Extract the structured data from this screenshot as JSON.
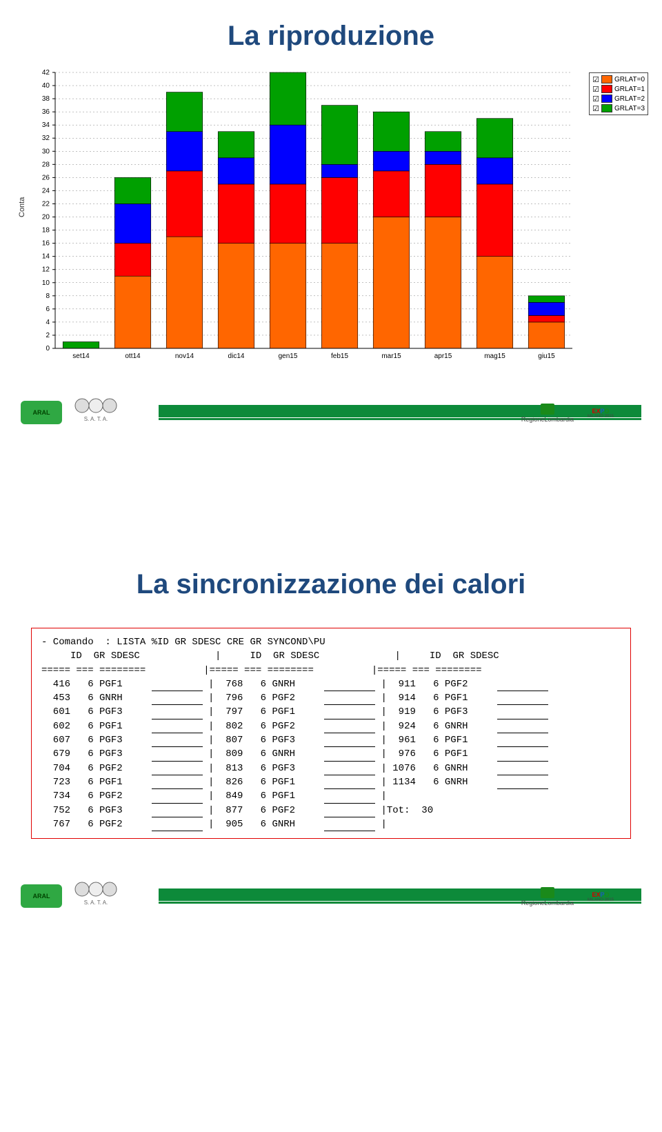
{
  "slide1": {
    "title": "La riproduzione",
    "chart": {
      "type": "stacked_bar",
      "ylabel": "Conta",
      "background_color": "#ffffff",
      "grid_color": "#808080",
      "grid_dash": "2,3",
      "axis_color": "#000000",
      "bar_border": "#000000",
      "bar_width_ratio": 0.7,
      "ylim": [
        0,
        42
      ],
      "ytick_step": 2,
      "categories": [
        "set14",
        "ott14",
        "nov14",
        "dic14",
        "gen15",
        "feb15",
        "mar15",
        "apr15",
        "mag15",
        "giu15"
      ],
      "series": [
        {
          "label": "GRLAT=0",
          "color": "#ff6600",
          "values": [
            0,
            11,
            17,
            16,
            16,
            16,
            20,
            20,
            14,
            4
          ]
        },
        {
          "label": "GRLAT=1",
          "color": "#ff0000",
          "values": [
            0,
            5,
            10,
            9,
            9,
            10,
            7,
            8,
            11,
            1
          ]
        },
        {
          "label": "GRLAT=2",
          "color": "#0000ff",
          "values": [
            0,
            6,
            6,
            4,
            9,
            2,
            3,
            2,
            4,
            2
          ]
        },
        {
          "label": "GRLAT=3",
          "color": "#00a000",
          "values": [
            1,
            4,
            6,
            4,
            8,
            9,
            6,
            3,
            6,
            1
          ]
        }
      ],
      "tick_fontsize": 10
    },
    "legend_checked": true
  },
  "slide2": {
    "title": "La sincronizzazione dei calori",
    "command_line": "- Comando  : LISTA %ID GR SDESC CRE GR SYNCOND\\PU",
    "header_cols": [
      "ID",
      "GR",
      "SDESC"
    ],
    "col1": [
      {
        "id": "416",
        "gr": "6",
        "sd": "PGF1"
      },
      {
        "id": "453",
        "gr": "6",
        "sd": "GNRH"
      },
      {
        "id": "601",
        "gr": "6",
        "sd": "PGF3"
      },
      {
        "id": "602",
        "gr": "6",
        "sd": "PGF1"
      },
      {
        "id": "607",
        "gr": "6",
        "sd": "PGF3"
      },
      {
        "id": "679",
        "gr": "6",
        "sd": "PGF3"
      },
      {
        "id": "704",
        "gr": "6",
        "sd": "PGF2"
      },
      {
        "id": "723",
        "gr": "6",
        "sd": "PGF1"
      },
      {
        "id": "734",
        "gr": "6",
        "sd": "PGF2"
      },
      {
        "id": "752",
        "gr": "6",
        "sd": "PGF3"
      },
      {
        "id": "767",
        "gr": "6",
        "sd": "PGF2"
      }
    ],
    "col2": [
      {
        "id": "768",
        "gr": "6",
        "sd": "GNRH"
      },
      {
        "id": "796",
        "gr": "6",
        "sd": "PGF2"
      },
      {
        "id": "797",
        "gr": "6",
        "sd": "PGF1"
      },
      {
        "id": "802",
        "gr": "6",
        "sd": "PGF2"
      },
      {
        "id": "807",
        "gr": "6",
        "sd": "PGF3"
      },
      {
        "id": "809",
        "gr": "6",
        "sd": "GNRH"
      },
      {
        "id": "813",
        "gr": "6",
        "sd": "PGF3"
      },
      {
        "id": "826",
        "gr": "6",
        "sd": "PGF1"
      },
      {
        "id": "849",
        "gr": "6",
        "sd": "PGF1"
      },
      {
        "id": "877",
        "gr": "6",
        "sd": "PGF2"
      },
      {
        "id": "905",
        "gr": "6",
        "sd": "GNRH"
      }
    ],
    "col3": [
      {
        "id": "911",
        "gr": "6",
        "sd": "PGF2"
      },
      {
        "id": "914",
        "gr": "6",
        "sd": "PGF1"
      },
      {
        "id": "919",
        "gr": "6",
        "sd": "PGF3"
      },
      {
        "id": "924",
        "gr": "6",
        "sd": "GNRH"
      },
      {
        "id": "961",
        "gr": "6",
        "sd": "PGF1"
      },
      {
        "id": "976",
        "gr": "6",
        "sd": "PGF1"
      },
      {
        "id": "1076",
        "gr": "6",
        "sd": "GNRH"
      },
      {
        "id": "1134",
        "gr": "6",
        "sd": "GNRH"
      }
    ],
    "total_label": "Tot:  30"
  },
  "footer": {
    "aral": "ARAL",
    "sata": "S. A. T. A.",
    "regione": "RegioneLombardia",
    "expo": "EXPO",
    "expo_sub": "MILANO 2015"
  }
}
